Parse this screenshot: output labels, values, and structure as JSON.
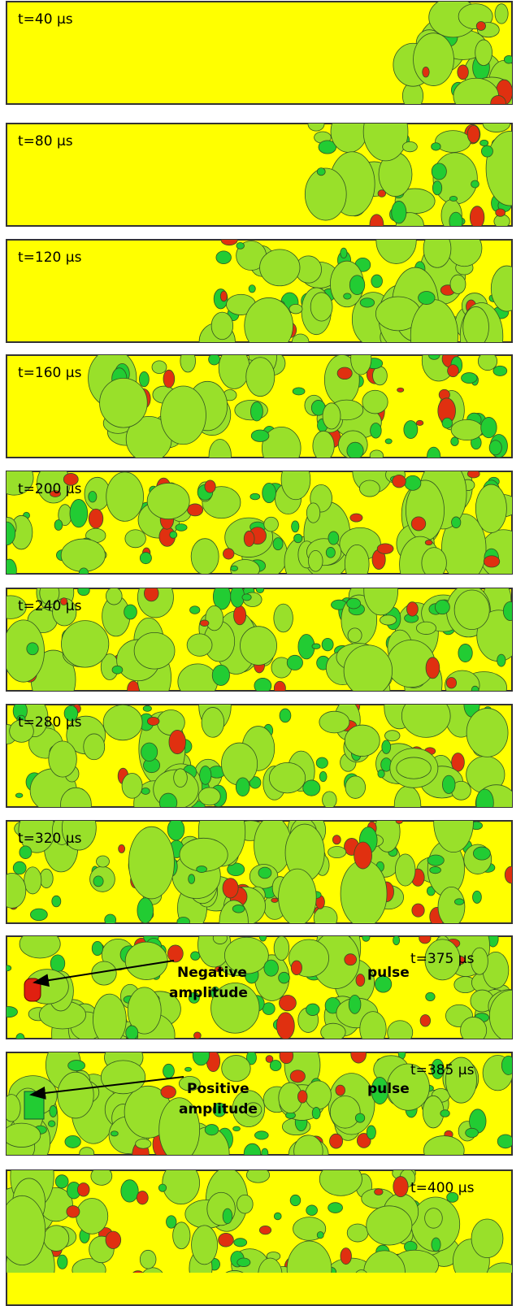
{
  "panels": [
    {
      "label": "t=40 µs"
    },
    {
      "label": "t=80 µs"
    },
    {
      "label": "t=120 µs"
    },
    {
      "label": "t=160 µs"
    },
    {
      "label": "t=200 µs"
    },
    {
      "label": "t=240 µs"
    },
    {
      "label": "t=280 µs"
    },
    {
      "label": "t=320 µs"
    },
    {
      "label": "t=375 µs",
      "annotation": {
        "first": "Negative",
        "second": "amplitude",
        "third": "pulse"
      }
    },
    {
      "label": "t=385 µs",
      "annotation": {
        "first": "Positive",
        "second": "amplitude",
        "third": "pulse"
      }
    },
    {
      "label": "t=400 µs"
    }
  ]
}
